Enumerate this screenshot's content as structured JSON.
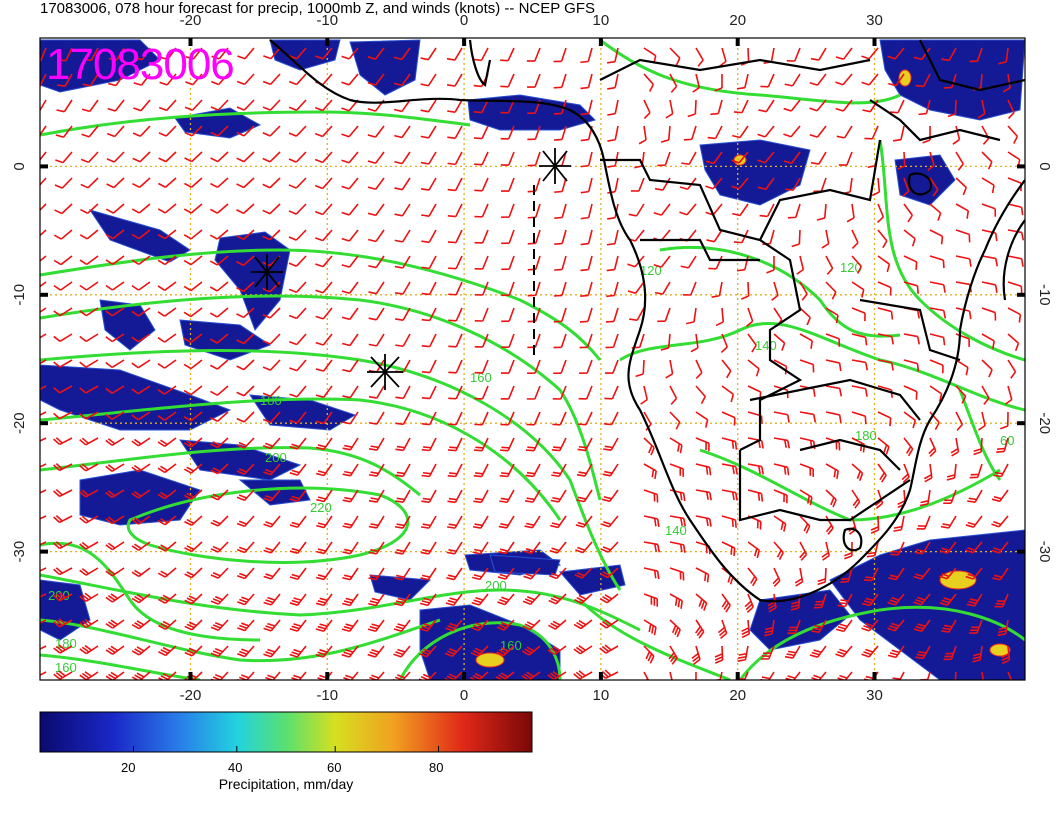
{
  "title": "17083006, 078 hour forecast for precip, 1000mb Z, and winds (knots) -- NCEP GFS",
  "stamp": "17083006",
  "map": {
    "lon_range": [
      -31,
      41
    ],
    "lat_range": [
      -40,
      10
    ],
    "lon_ticks": [
      "-20",
      "-10",
      "0",
      "10",
      "20",
      "30"
    ],
    "lat_ticks": [
      "0",
      "-10",
      "-20",
      "-30"
    ],
    "grid_color": "#e0b020",
    "contour_color": "#33dd33",
    "barb_color": "#ee1111",
    "coast_color": "#000000",
    "contour_labels": [
      "120",
      "140",
      "160",
      "180",
      "200",
      "220",
      "200",
      "180",
      "160",
      "200",
      "140",
      "120",
      "180",
      "160",
      "60"
    ]
  },
  "colorbar": {
    "title": "Precipitation, mm/day",
    "ticks": [
      "20",
      "40",
      "60",
      "80"
    ],
    "colors": [
      "#0a0a6e",
      "#1a28c8",
      "#2a7ae8",
      "#22d2e0",
      "#58e070",
      "#d6e020",
      "#f0a020",
      "#e02818",
      "#7a0808"
    ]
  }
}
